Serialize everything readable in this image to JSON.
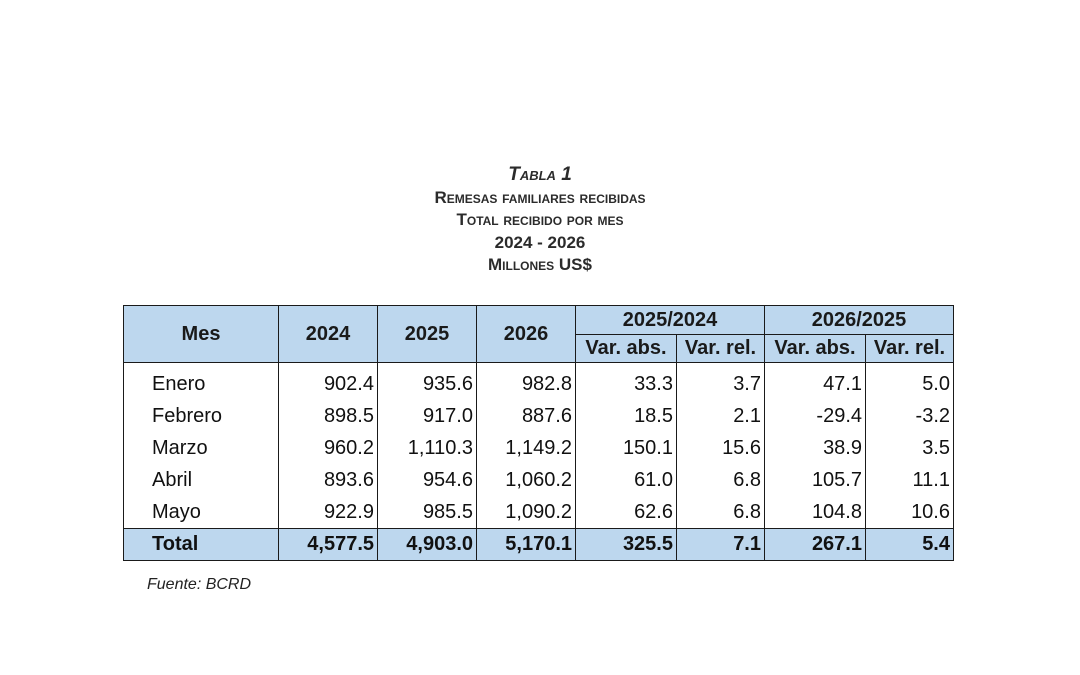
{
  "title": {
    "line1": "Tabla 1",
    "line2": "Remesas familiares recibidas",
    "line3": "Total recibido por mes",
    "line4": "2024 - 2026",
    "line5": "Millones US$"
  },
  "table": {
    "headers": {
      "mes": "Mes",
      "y2024": "2024",
      "y2025": "2025",
      "y2026": "2026",
      "group1": "2025/2024",
      "group2": "2026/2025",
      "var_abs": "Var. abs.",
      "var_rel": "Var. rel."
    },
    "rows": [
      {
        "mes": "Enero",
        "y2024": "902.4",
        "y2025": "935.6",
        "y2026": "982.8",
        "abs1": "33.3",
        "rel1": "3.7",
        "abs2": "47.1",
        "rel2": "5.0"
      },
      {
        "mes": "Febrero",
        "y2024": "898.5",
        "y2025": "917.0",
        "y2026": "887.6",
        "abs1": "18.5",
        "rel1": "2.1",
        "abs2": "-29.4",
        "rel2": "-3.2"
      },
      {
        "mes": "Marzo",
        "y2024": "960.2",
        "y2025": "1,110.3",
        "y2026": "1,149.2",
        "abs1": "150.1",
        "rel1": "15.6",
        "abs2": "38.9",
        "rel2": "3.5"
      },
      {
        "mes": "Abril",
        "y2024": "893.6",
        "y2025": "954.6",
        "y2026": "1,060.2",
        "abs1": "61.0",
        "rel1": "6.8",
        "abs2": "105.7",
        "rel2": "11.1"
      },
      {
        "mes": "Mayo",
        "y2024": "922.9",
        "y2025": "985.5",
        "y2026": "1,090.2",
        "abs1": "62.6",
        "rel1": "6.8",
        "abs2": "104.8",
        "rel2": "10.6"
      }
    ],
    "total": {
      "mes": "Total",
      "y2024": "4,577.5",
      "y2025": "4,903.0",
      "y2026": "5,170.1",
      "abs1": "325.5",
      "rel1": "7.1",
      "abs2": "267.1",
      "rel2": "5.4"
    }
  },
  "source": "Fuente: BCRD",
  "colors": {
    "header_fill": "#bdd7ee",
    "border": "#1a1a1a"
  }
}
